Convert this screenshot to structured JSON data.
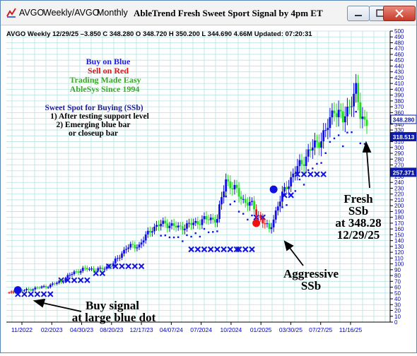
{
  "window": {
    "symbol_label": "AVGO",
    "weekly_label": "Weekly/AVGO",
    "monthly_label": "Monthly",
    "title": "AbleTrend Fresh Sweet Sport Signal by 4pm ET"
  },
  "header": {
    "info": "AVGO  Weekly 12/29/25 –3.850 C 348.280 O 348.720 H 350.200 L 344.690 4.66M Updated: 07:20:31"
  },
  "legend": {
    "buy": "Buy on Blue",
    "sell": "Sell on Red",
    "trading": "Trading Made Easy",
    "since": "AbleSys Since 1994",
    "sweet_title": "Sweet Spot for Buying (SSb)",
    "rule1": "1) After testing support level",
    "rule2": "2) Emerging blue bar",
    "rule3": "or closeup bar"
  },
  "annotations": {
    "buy_signal_1": "Buy signal",
    "buy_signal_2": "at large blue dot",
    "aggressive_1": "Aggressive",
    "aggressive_2": "SSb",
    "fresh_1": "Fresh",
    "fresh_2": "SSb",
    "fresh_3": "at 348.28",
    "fresh_4": "12/29/25"
  },
  "colors": {
    "blue": "#1010e0",
    "green": "#22dd22",
    "red": "#ee1111",
    "grid": "#b8e2e2",
    "axis_text": "#0000c0"
  },
  "chart_data": {
    "type": "candlestick",
    "ylim": [
      0,
      500
    ],
    "y_ticks": [
      0,
      10,
      20,
      30,
      40,
      50,
      60,
      70,
      80,
      90,
      100,
      110,
      120,
      130,
      140,
      150,
      160,
      170,
      180,
      190,
      200,
      210,
      220,
      230,
      240,
      250,
      260,
      270,
      280,
      290,
      300,
      310,
      320,
      330,
      340,
      350,
      360,
      370,
      380,
      390,
      400,
      410,
      420,
      430,
      440,
      450,
      460,
      470,
      480,
      490,
      500
    ],
    "x_tick_labels": [
      "11/2022",
      "02/2023",
      "04/30/23",
      "08/20/23",
      "12/17/23",
      "04/07/24",
      "07/2024",
      "10/2024",
      "01/2025",
      "03/30/25",
      "07/27/25",
      "11/16/25"
    ],
    "price_boxes": [
      {
        "value": 348.28,
        "label": "348.280"
      },
      {
        "value": 318.513,
        "label": "318.513"
      },
      {
        "value": 257.371,
        "label": "257.371"
      }
    ],
    "anchors": [
      [
        0,
        50
      ],
      [
        6,
        54
      ],
      [
        12,
        58
      ],
      [
        18,
        62
      ],
      [
        24,
        70
      ],
      [
        30,
        86
      ],
      [
        36,
        92
      ],
      [
        42,
        90
      ],
      [
        48,
        100
      ],
      [
        54,
        128
      ],
      [
        60,
        132
      ],
      [
        66,
        162
      ],
      [
        72,
        170
      ],
      [
        78,
        162
      ],
      [
        84,
        168
      ],
      [
        90,
        176
      ],
      [
        96,
        178
      ],
      [
        100,
        245
      ],
      [
        104,
        228
      ],
      [
        108,
        210
      ],
      [
        112,
        200
      ],
      [
        116,
        178
      ],
      [
        120,
        158
      ],
      [
        124,
        200
      ],
      [
        128,
        235
      ],
      [
        134,
        270
      ],
      [
        140,
        300
      ],
      [
        146,
        325
      ],
      [
        150,
        370
      ],
      [
        154,
        345
      ],
      [
        158,
        385
      ],
      [
        160,
        395
      ],
      [
        162,
        355
      ],
      [
        164,
        348
      ]
    ],
    "sell_bar_ranges": [
      [
        0,
        2
      ],
      [
        114,
        118
      ]
    ],
    "support_level_x": [
      {
        "from": 4,
        "to": 19,
        "value": 48
      },
      {
        "from": 24,
        "to": 37,
        "value": 72
      },
      {
        "from": 40,
        "to": 44,
        "value": 84
      },
      {
        "from": 46,
        "to": 63,
        "value": 96
      },
      {
        "from": 84,
        "to": 105,
        "value": 125
      },
      {
        "from": 106,
        "to": 112,
        "value": 125
      },
      {
        "from": 114,
        "to": 118,
        "value": 180
      },
      {
        "from": 127,
        "to": 132,
        "value": 218
      },
      {
        "from": 133,
        "to": 145,
        "value": 254
      }
    ],
    "large_dots": [
      {
        "x": 4,
        "value": 55,
        "color": "blue"
      },
      {
        "x": 114,
        "value": 170,
        "color": "red"
      },
      {
        "x": 122,
        "value": 228,
        "color": "blue"
      }
    ]
  }
}
